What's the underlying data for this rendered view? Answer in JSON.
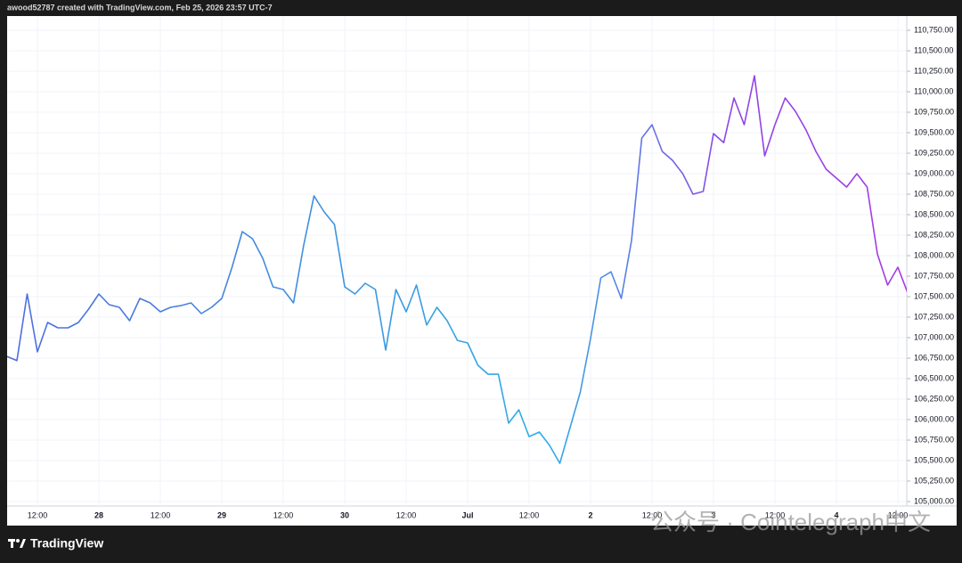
{
  "header": "awood52787 created with TradingView.com, Feb 25, 2026 23:57 UTC-7",
  "brand": "TradingView",
  "watermark": "公众号 · Cointelegraph中文",
  "chart_data": {
    "type": "line",
    "categories": [
      null,
      null,
      null,
      "12:00",
      null,
      null,
      null,
      null,
      null,
      "28",
      null,
      null,
      null,
      null,
      null,
      "12:00",
      null,
      null,
      null,
      null,
      null,
      "29",
      null,
      null,
      null,
      null,
      null,
      "12:00",
      null,
      null,
      null,
      null,
      null,
      "30",
      null,
      null,
      null,
      null,
      null,
      "12:00",
      null,
      null,
      null,
      null,
      null,
      "Jul",
      null,
      null,
      null,
      null,
      null,
      "12:00",
      null,
      null,
      null,
      null,
      null,
      "2",
      null,
      null,
      null,
      null,
      null,
      "12:00",
      null,
      null,
      null,
      null,
      null,
      "3",
      null,
      null,
      null,
      null,
      null,
      "12:00",
      null,
      null,
      null,
      null,
      null,
      "4",
      null,
      null,
      null,
      null,
      null,
      "12:00",
      null
    ],
    "series": [
      {
        "values": [
          106772,
          106720,
          107533,
          106826,
          107185,
          107120,
          107120,
          107185,
          107348,
          107533,
          107402,
          107370,
          107207,
          107479,
          107424,
          107315,
          107370,
          107390,
          107424,
          107294,
          107370,
          107479,
          107859,
          108294,
          108207,
          107968,
          107620,
          107587,
          107424,
          108131,
          108729,
          108533,
          108381,
          107620,
          107533,
          107663,
          107587,
          106848,
          107587,
          107315,
          107641,
          107153,
          107370,
          107207,
          106967,
          106935,
          106663,
          106554,
          106554,
          105957,
          106120,
          105793,
          105848,
          105685,
          105467,
          105902,
          106337,
          106989,
          107728,
          107804,
          107479,
          108185,
          109435,
          109598,
          109272,
          109163,
          109000,
          108750,
          108784,
          109489,
          109380,
          109924,
          109598,
          110196,
          109218,
          109598,
          109924,
          109761,
          109543,
          109272,
          109054,
          108946,
          108837,
          109000,
          108837,
          108022,
          107641,
          107859,
          107533
        ],
        "gradient": [
          "#4d6ee0",
          "#4a80dd",
          "#3b98e0",
          "#2eaee6",
          "#8f45e6",
          "#a63ae6"
        ]
      }
    ],
    "ylim": [
      104946,
      110924
    ],
    "yticks": [
      {
        "value": 105000,
        "label": "105,000.00"
      },
      {
        "value": 105250,
        "label": "105,250.00"
      },
      {
        "value": 105500,
        "label": "105,500.00"
      },
      {
        "value": 105750,
        "label": "105,750.00"
      },
      {
        "value": 106000,
        "label": "106,000.00"
      },
      {
        "value": 106250,
        "label": "106,250.00"
      },
      {
        "value": 106500,
        "label": "106,500.00"
      },
      {
        "value": 106750,
        "label": "106,750.00"
      },
      {
        "value": 107000,
        "label": "107,000.00"
      },
      {
        "value": 107250,
        "label": "107,250.00"
      },
      {
        "value": 107500,
        "label": "107,500.00"
      },
      {
        "value": 107750,
        "label": "107,750.00"
      },
      {
        "value": 108000,
        "label": "108,000.00"
      },
      {
        "value": 108250,
        "label": "108,250.00"
      },
      {
        "value": 108500,
        "label": "108,500.00"
      },
      {
        "value": 108750,
        "label": "108,750.00"
      },
      {
        "value": 109000,
        "label": "109,000.00"
      },
      {
        "value": 109250,
        "label": "109,250.00"
      },
      {
        "value": 109500,
        "label": "109,500.00"
      },
      {
        "value": 109750,
        "label": "109,750.00"
      },
      {
        "value": 110000,
        "label": "110,000.00"
      },
      {
        "value": 110250,
        "label": "110,250.00"
      },
      {
        "value": 110500,
        "label": "110,500.00"
      },
      {
        "value": 110750,
        "label": "110,750.00"
      }
    ],
    "grid": true
  }
}
